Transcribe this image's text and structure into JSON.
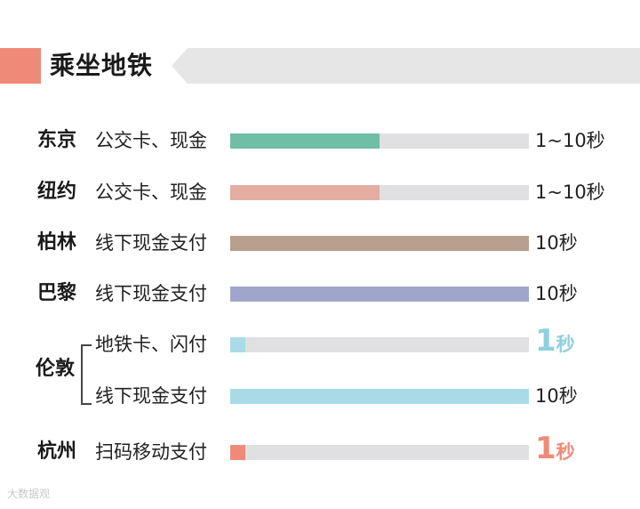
{
  "header": {
    "title": "乘坐地铁"
  },
  "colors": {
    "accent": "#f08a78",
    "track": "#e0e0e2",
    "tokyo": "#6fbea5",
    "newyork": "#e4ada2",
    "berlin": "#b89f8e",
    "paris": "#a0a6cb",
    "london": "#a8dbe7",
    "hangzhou": "#f08a78"
  },
  "chart_data": {
    "type": "bar",
    "title": "乘坐地铁",
    "rows": [
      {
        "city": "东京",
        "method": "公交卡、现金",
        "value": 0.5,
        "label": "1~10秒",
        "color": "#6fbea5"
      },
      {
        "city": "纽约",
        "method": "公交卡、现金",
        "value": 0.5,
        "label": "1~10秒",
        "color": "#e4ada2"
      },
      {
        "city": "柏林",
        "method": "线下现金支付",
        "value": 1.0,
        "label": "10秒",
        "color": "#b89f8e"
      },
      {
        "city": "巴黎",
        "method": "线下现金支付",
        "value": 1.0,
        "label": "10秒",
        "color": "#a0a6cb"
      },
      {
        "city": "伦敦",
        "method": "地铁卡、闪付",
        "value": 0.05,
        "label_num": "1",
        "label_unit": "秒",
        "color": "#a8dbe7"
      },
      {
        "city": "伦敦",
        "method": "线下现金支付",
        "value": 1.0,
        "label": "10秒",
        "color": "#a8dbe7"
      },
      {
        "city": "杭州",
        "method": "扫码移动支付",
        "value": 0.05,
        "label_num": "1",
        "label_unit": "秒",
        "color": "#f08a78"
      }
    ]
  },
  "watermark": "大数据观"
}
